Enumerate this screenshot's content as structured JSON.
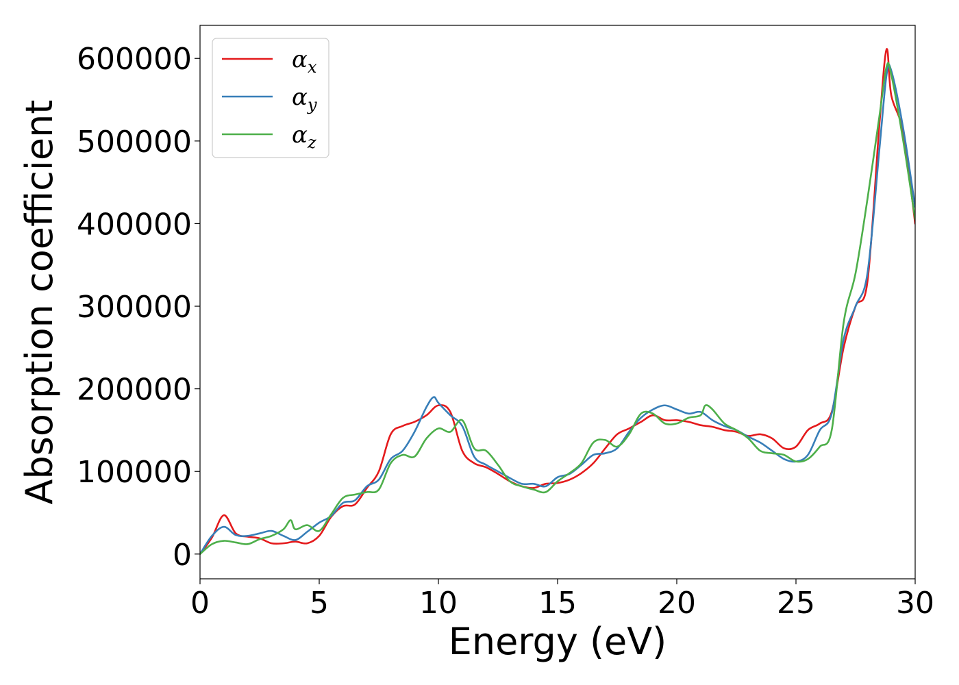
{
  "chart_data": {
    "type": "line",
    "title": "",
    "xlabel": "Energy (eV)",
    "ylabel": "Absorption coefficient",
    "xlim": [
      0,
      30
    ],
    "ylim": [
      -30000,
      640000
    ],
    "xticks": [
      0,
      5,
      10,
      15,
      20,
      25,
      30
    ],
    "xtick_labels": [
      "0",
      "5",
      "10",
      "15",
      "20",
      "25",
      "30"
    ],
    "yticks": [
      0,
      100000,
      200000,
      300000,
      400000,
      500000,
      600000
    ],
    "ytick_labels": [
      "0",
      "100000",
      "200000",
      "300000",
      "400000",
      "500000",
      "600000"
    ],
    "grid": false,
    "legend_position": "top-left",
    "series": [
      {
        "name": "α",
        "subscript": "x",
        "color": "#e41a1c",
        "x": [
          0,
          0.5,
          1.0,
          1.5,
          2.0,
          2.5,
          3.0,
          3.5,
          4.0,
          4.5,
          5.0,
          5.5,
          6.0,
          6.5,
          7.0,
          7.5,
          8.0,
          8.5,
          9.0,
          9.5,
          10.0,
          10.5,
          11.0,
          11.5,
          12.0,
          12.5,
          13.0,
          13.5,
          14.0,
          14.5,
          15.0,
          15.5,
          16.0,
          16.5,
          17.0,
          17.5,
          18.0,
          18.5,
          19.0,
          19.5,
          20.0,
          20.5,
          21.0,
          21.5,
          22.0,
          22.5,
          23.0,
          23.5,
          24.0,
          24.5,
          25.0,
          25.5,
          26.0,
          26.5,
          27.0,
          27.5,
          28.0,
          28.5,
          28.8,
          29.0,
          29.5,
          30.0
        ],
        "y": [
          0,
          20000,
          47000,
          25000,
          21000,
          19000,
          13000,
          13000,
          15000,
          13000,
          22000,
          45000,
          58000,
          60000,
          80000,
          100000,
          145000,
          155000,
          160000,
          168000,
          180000,
          172000,
          125000,
          110000,
          105000,
          97000,
          88000,
          82000,
          80000,
          85000,
          86000,
          90000,
          98000,
          110000,
          128000,
          145000,
          152000,
          160000,
          168000,
          162000,
          162000,
          160000,
          156000,
          154000,
          150000,
          148000,
          143000,
          145000,
          140000,
          128000,
          130000,
          150000,
          158000,
          172000,
          250000,
          300000,
          330000,
          520000,
          611000,
          555000,
          510000,
          400000
        ]
      },
      {
        "name": "α",
        "subscript": "y",
        "color": "#377eb8",
        "x": [
          0,
          0.5,
          1.0,
          1.5,
          2.0,
          2.5,
          3.0,
          3.5,
          4.0,
          4.5,
          5.0,
          5.5,
          6.0,
          6.5,
          7.0,
          7.5,
          8.0,
          8.5,
          9.0,
          9.5,
          9.8,
          10.0,
          10.5,
          11.0,
          11.5,
          12.0,
          12.5,
          13.0,
          13.5,
          14.0,
          14.5,
          15.0,
          15.5,
          16.0,
          16.5,
          17.0,
          17.5,
          18.0,
          18.5,
          19.0,
          19.5,
          20.0,
          20.5,
          21.0,
          21.5,
          22.0,
          22.5,
          23.0,
          23.5,
          24.0,
          24.5,
          25.0,
          25.5,
          26.0,
          26.5,
          27.0,
          27.5,
          28.0,
          28.5,
          28.8,
          29.0,
          29.5,
          30.0
        ],
        "y": [
          0,
          22000,
          33000,
          23000,
          22000,
          25000,
          28000,
          22000,
          17000,
          27000,
          38000,
          46000,
          62000,
          65000,
          82000,
          90000,
          115000,
          125000,
          148000,
          178000,
          190000,
          183000,
          168000,
          155000,
          118000,
          108000,
          100000,
          92000,
          85000,
          85000,
          82000,
          93000,
          97000,
          108000,
          120000,
          122000,
          128000,
          148000,
          165000,
          175000,
          180000,
          175000,
          170000,
          172000,
          162000,
          155000,
          150000,
          142000,
          135000,
          125000,
          115000,
          112000,
          120000,
          150000,
          170000,
          260000,
          300000,
          340000,
          490000,
          580000,
          585000,
          515000,
          420000
        ]
      },
      {
        "name": "α",
        "subscript": "z",
        "color": "#4daf4a",
        "x": [
          0,
          0.5,
          1.0,
          1.5,
          2.0,
          2.5,
          3.0,
          3.5,
          3.8,
          4.0,
          4.5,
          5.0,
          5.5,
          6.0,
          6.5,
          7.0,
          7.5,
          8.0,
          8.5,
          9.0,
          9.5,
          10.0,
          10.5,
          11.0,
          11.5,
          12.0,
          12.5,
          13.0,
          13.5,
          14.0,
          14.5,
          15.0,
          15.5,
          16.0,
          16.5,
          17.0,
          17.5,
          18.0,
          18.5,
          19.0,
          19.5,
          20.0,
          20.5,
          21.0,
          21.2,
          21.5,
          22.0,
          22.5,
          23.0,
          23.5,
          24.0,
          24.5,
          25.0,
          25.5,
          26.0,
          26.5,
          27.0,
          27.5,
          28.0,
          28.5,
          28.8,
          29.0,
          29.5,
          30.0
        ],
        "y": [
          0,
          12000,
          16000,
          14000,
          12000,
          18000,
          22000,
          30000,
          41000,
          30000,
          35000,
          28000,
          48000,
          68000,
          72000,
          75000,
          78000,
          110000,
          120000,
          118000,
          140000,
          152000,
          148000,
          162000,
          128000,
          125000,
          108000,
          88000,
          82000,
          78000,
          75000,
          88000,
          98000,
          110000,
          135000,
          138000,
          130000,
          145000,
          170000,
          170000,
          158000,
          158000,
          165000,
          168000,
          180000,
          175000,
          158000,
          150000,
          140000,
          125000,
          122000,
          120000,
          112000,
          115000,
          130000,
          150000,
          280000,
          340000,
          430000,
          530000,
          590000,
          580000,
          500000,
          405000
        ]
      }
    ]
  }
}
